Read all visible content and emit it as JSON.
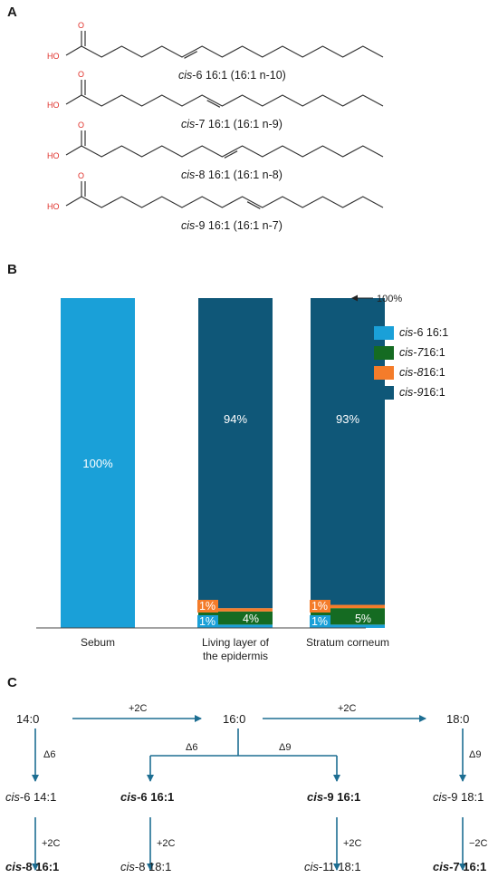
{
  "panel_a": {
    "label": "A",
    "molecules": [
      {
        "group_label": "HO",
        "o_label": "O",
        "caption_italic": "cis",
        "caption_rest": "-6 16:1 (16:1 n-10)"
      },
      {
        "group_label": "HO",
        "o_label": "O",
        "caption_italic": "cis",
        "caption_rest": "-7 16:1 (16:1 n-9)"
      },
      {
        "group_label": "HO",
        "o_label": "O",
        "caption_italic": "cis",
        "caption_rest": "-8 16:1 (16:1 n-8)"
      },
      {
        "group_label": "HO",
        "o_label": "O",
        "caption_italic": "cis",
        "caption_rest": "-9 16:1 (16:1 n-7)"
      }
    ]
  },
  "panel_b": {
    "label": "B",
    "arrow_label": "100%",
    "legend": [
      {
        "italic": "cis",
        "rest": "-6 16:1",
        "color": "#1aa0d8"
      },
      {
        "italic": "cis-7",
        "rest": " 16:1",
        "color": "#156b22"
      },
      {
        "italic": "cis-8",
        "rest": " 16:1",
        "color": "#f47c2a"
      },
      {
        "italic": "cis-9",
        "rest": " 16:1",
        "color": "#0f5778"
      }
    ]
  },
  "chart_data": {
    "type": "bar",
    "stacked": true,
    "categories": [
      "Sebum",
      "Living layer of the epidermis",
      "Stratum corneum"
    ],
    "category_lines": [
      [
        "Sebum"
      ],
      [
        "Living layer of",
        "the epidermis"
      ],
      [
        "Stratum corneum"
      ]
    ],
    "series": [
      {
        "name": "cis-6 16:1",
        "values": [
          100,
          1,
          1
        ],
        "labels": [
          "100%",
          "1%",
          "1%"
        ]
      },
      {
        "name": "cis-7 16:1",
        "values": [
          0,
          4,
          5
        ],
        "labels": [
          "",
          "4%",
          "5%"
        ]
      },
      {
        "name": "cis-8 16:1",
        "values": [
          0,
          1,
          1
        ],
        "labels": [
          "",
          "1%",
          "1%"
        ]
      },
      {
        "name": "cis-9 16:1",
        "values": [
          0,
          94,
          93
        ],
        "labels": [
          "",
          "94%",
          "93%"
        ]
      }
    ],
    "ylim": [
      0,
      100
    ],
    "legend_position": "right"
  },
  "panel_c": {
    "label": "C",
    "nodes": {
      "c14": "14:0",
      "c16": "16:0",
      "c18": "18:0",
      "cis6_14": {
        "italic": "cis",
        "rest": "-6 14:1"
      },
      "cis6_16": {
        "italic": "cis",
        "rest": "-6 16:1"
      },
      "cis9_16": {
        "italic": "cis",
        "rest": "-9 16:1"
      },
      "cis9_18": {
        "italic": "cis",
        "rest": "-9 18:1"
      },
      "cis8_16": {
        "italic": "cis",
        "rest": "-8 16:1"
      },
      "cis8_18": {
        "italic": "cis",
        "rest": "-8 18:1"
      },
      "cis11_18": {
        "italic": "cis",
        "rest": "-11 18:1"
      },
      "cis7_16": {
        "italic": "cis",
        "rest": "-7 16:1"
      }
    },
    "edges": {
      "e1": "+2C",
      "e2": "+2C",
      "e3": "Δ6",
      "e4": "Δ6",
      "e5": "Δ9",
      "e6": "Δ9",
      "e7": "+2C",
      "e8": "+2C",
      "e9": "+2C",
      "e10": "−2C"
    }
  }
}
